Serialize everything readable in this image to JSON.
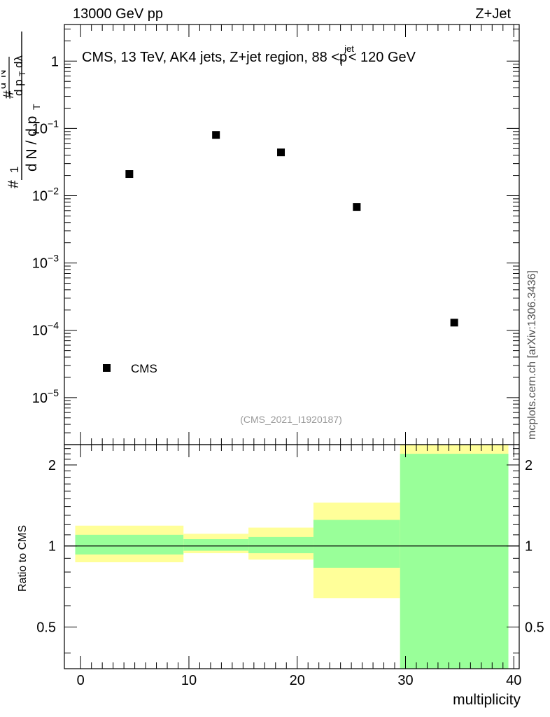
{
  "header": {
    "left": "13000 GeV pp",
    "right": "Z+Jet"
  },
  "credit": "mcplots.cern.ch [arXiv:1306.3436]",
  "chart_data": [
    {
      "type": "scatter",
      "title": "CMS, 13 TeV, AK4 jets, Z+jet region, 88 <p_T^{jet}< 120 GeV",
      "ylabel": "1/(dN/dp_T) · d²N/(dp_T dλ)",
      "yscale": "log",
      "ylim": [
        2e-06,
        3.5
      ],
      "xlim": [
        -1.5,
        40.5
      ],
      "legend": {
        "label": "CMS",
        "position": "bottom-left"
      },
      "watermark": "(CMS_2021_I1920187)",
      "y_ticks": [
        {
          "value": 1,
          "label": "1"
        },
        {
          "value": 0.1,
          "base": "10",
          "exp": "−1"
        },
        {
          "value": 0.01,
          "base": "10",
          "exp": "−2"
        },
        {
          "value": 0.001,
          "base": "10",
          "exp": "−3"
        },
        {
          "value": 0.0001,
          "base": "10",
          "exp": "−4"
        },
        {
          "value": 1e-05,
          "base": "10",
          "exp": "−5"
        }
      ],
      "series": [
        {
          "name": "CMS",
          "points": [
            {
              "x": 4.5,
              "y": 0.021
            },
            {
              "x": 12.5,
              "y": 0.08
            },
            {
              "x": 18.5,
              "y": 0.044
            },
            {
              "x": 25.5,
              "y": 0.0068
            },
            {
              "x": 34.5,
              "y": 0.00013
            }
          ]
        }
      ]
    },
    {
      "type": "area",
      "ylabel": "Ratio to CMS",
      "xlabel": "multiplicity",
      "yscale": "log",
      "ylim": [
        0.35,
        2.38
      ],
      "xlim": [
        -1.5,
        40.5
      ],
      "reference_line": 1,
      "y_ticks": [
        {
          "value": 2,
          "label": "2"
        },
        {
          "value": 1,
          "label": "1"
        },
        {
          "value": 0.5,
          "label": "0.5"
        }
      ],
      "x_ticks": [
        {
          "value": 0,
          "label": "0"
        },
        {
          "value": 10,
          "label": "10"
        },
        {
          "value": 20,
          "label": "20"
        },
        {
          "value": 30,
          "label": "30"
        },
        {
          "value": 40,
          "label": "40"
        }
      ],
      "bands": [
        {
          "xlo": -0.5,
          "xhi": 9.5,
          "stat": [
            0.93,
            1.1
          ],
          "total": [
            0.87,
            1.19
          ]
        },
        {
          "xlo": 9.5,
          "xhi": 15.5,
          "stat": [
            0.96,
            1.06
          ],
          "total": [
            0.94,
            1.11
          ]
        },
        {
          "xlo": 15.5,
          "xhi": 21.5,
          "stat": [
            0.94,
            1.08
          ],
          "total": [
            0.89,
            1.17
          ]
        },
        {
          "xlo": 21.5,
          "xhi": 29.5,
          "stat": [
            0.83,
            1.25
          ],
          "total": [
            0.64,
            1.45
          ]
        },
        {
          "xlo": 29.5,
          "xhi": 39.5,
          "stat": [
            0.35,
            2.2
          ],
          "total": [
            0.35,
            2.38
          ]
        }
      ],
      "colors": {
        "total": "#ffff99",
        "stat": "#99ff99"
      }
    }
  ]
}
